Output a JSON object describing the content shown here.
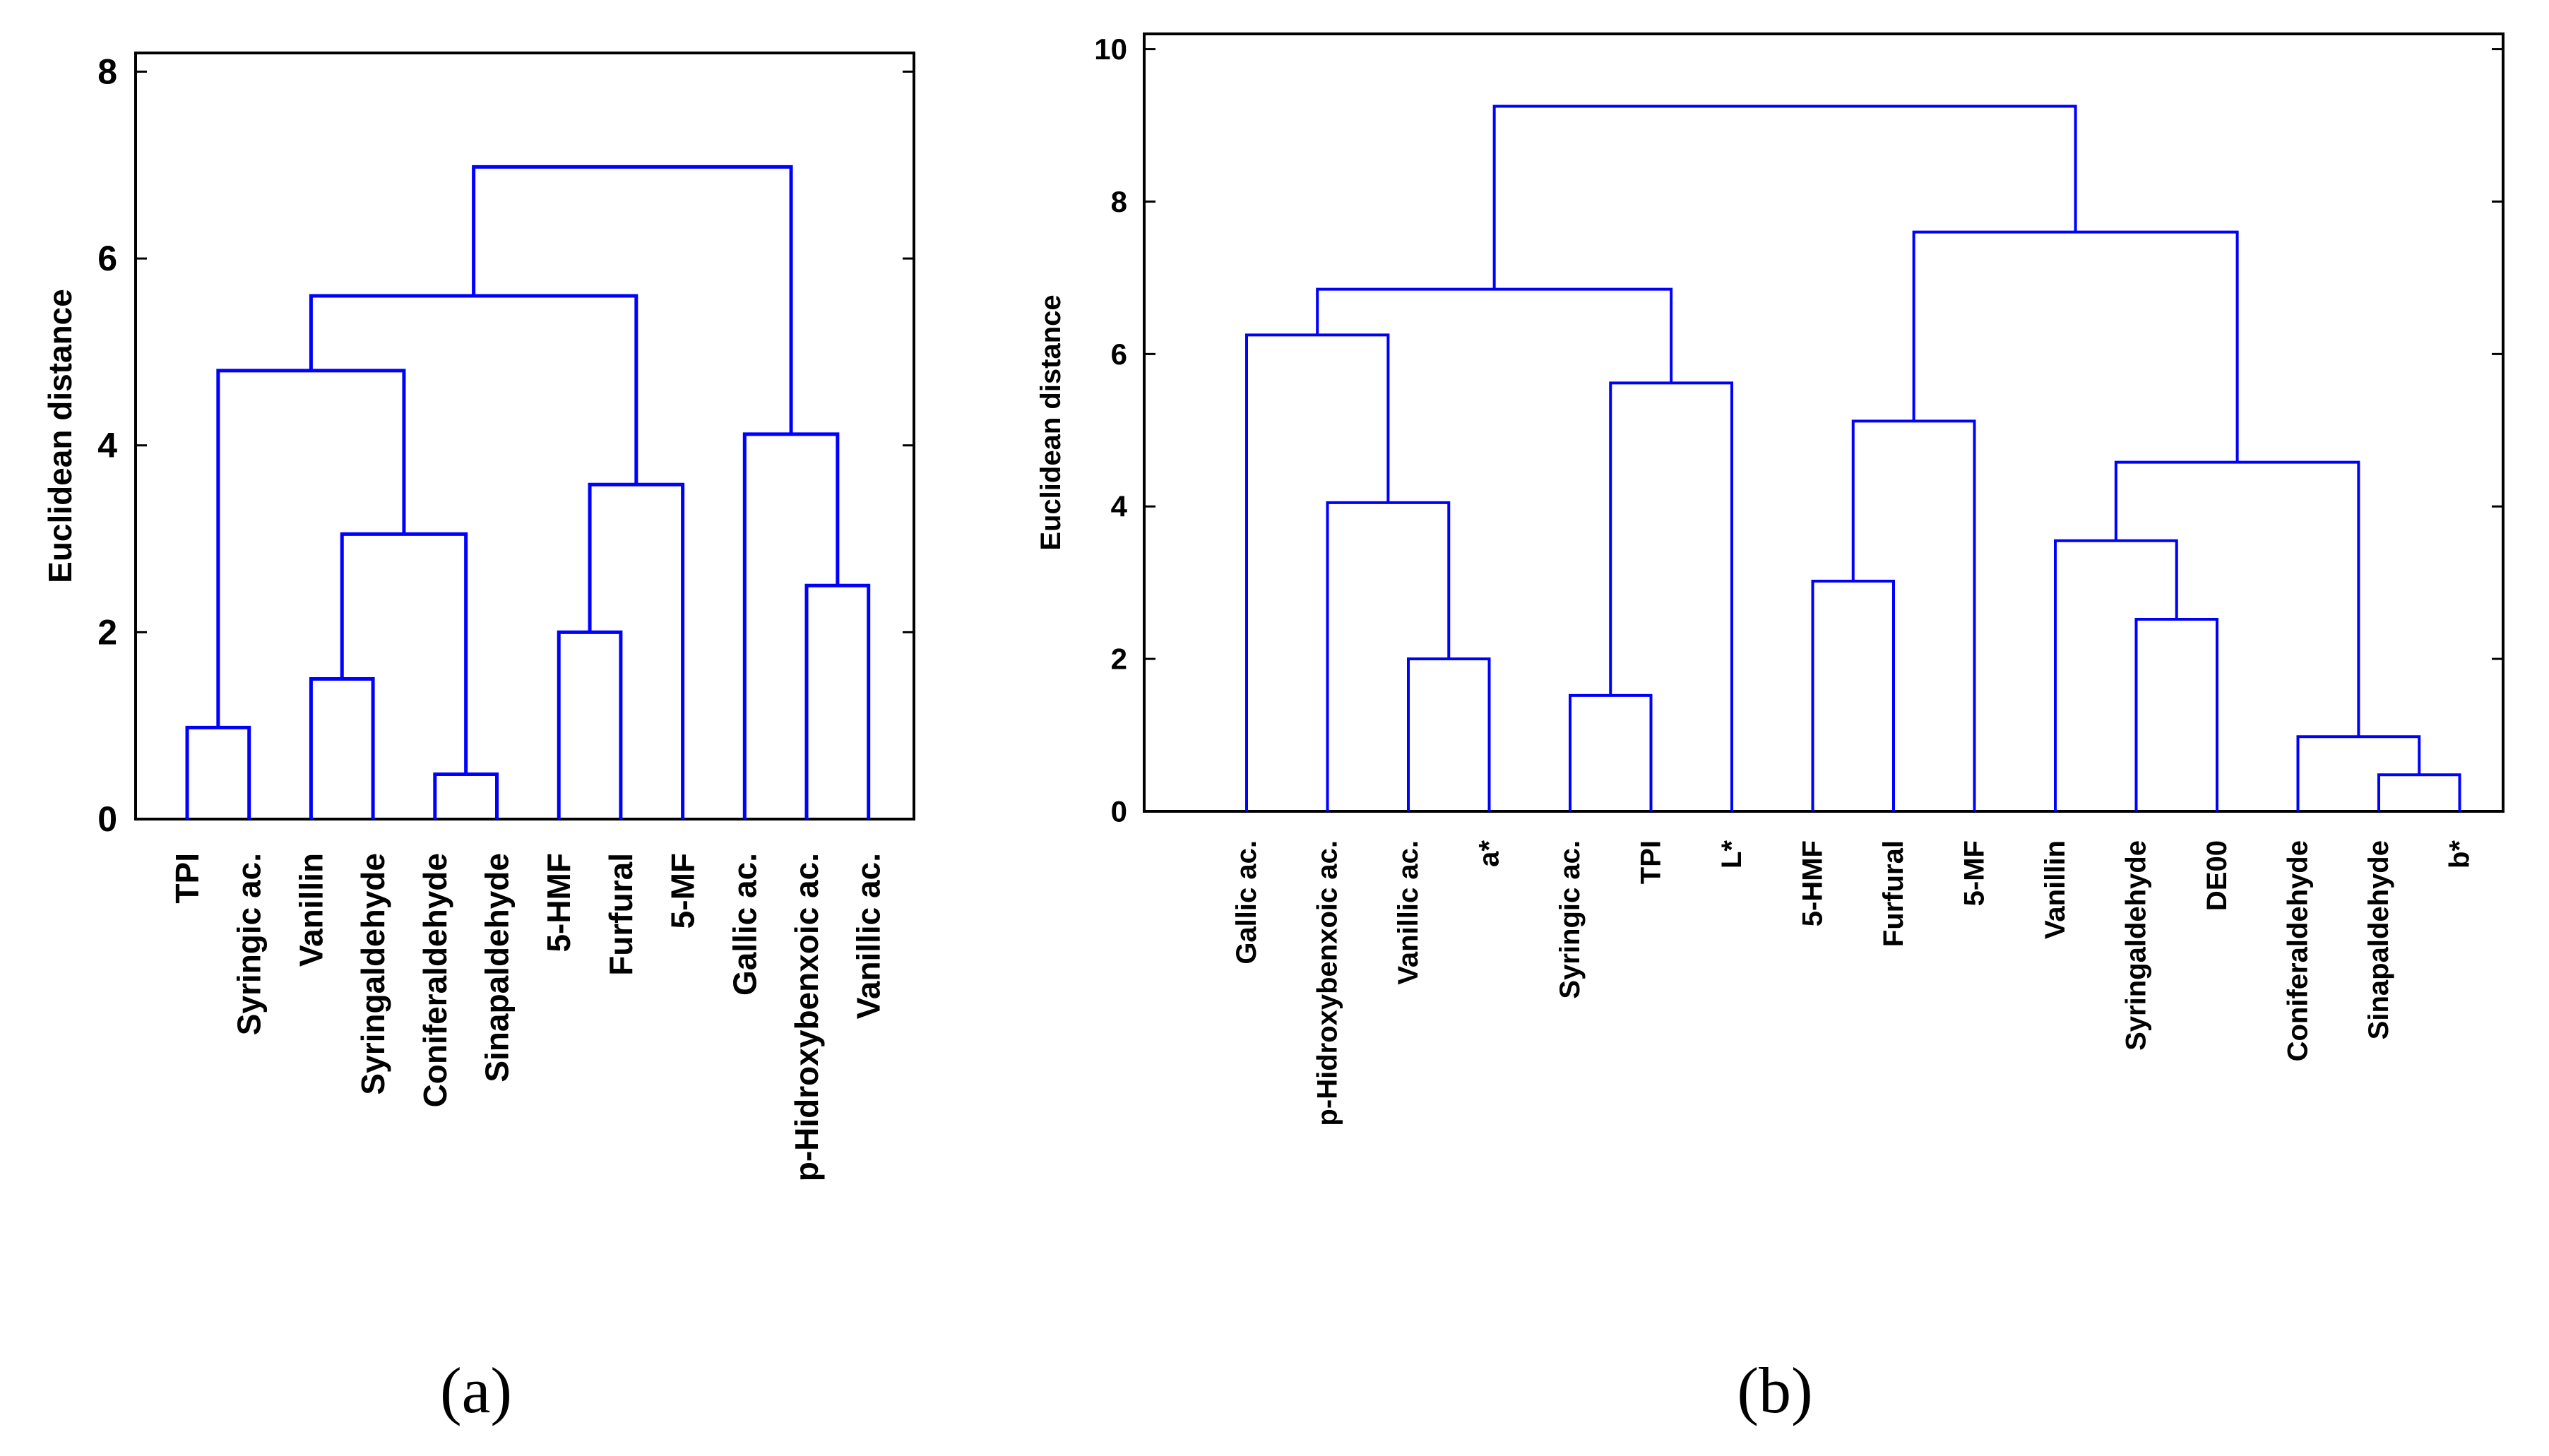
{
  "chart_data": [
    {
      "type": "dendrogram",
      "panel_label": "(a)",
      "title": "",
      "xlabel": "",
      "ylabel": "Euclidean distance",
      "ylim": [
        0,
        8.2
      ],
      "yticks": [
        0,
        2,
        4,
        6,
        8
      ],
      "grid": false,
      "line_color": "#0000ff",
      "leaves": [
        "TPI",
        "Syringic ac.",
        "Vanillin",
        "Syringaldehyde",
        "Coniferaldehyde",
        "Sinapaldehyde",
        "5-HMF",
        "Furfural",
        "5-MF",
        "Gallic ac.",
        "p-Hidroxybenxoic ac.",
        "Vanillic ac."
      ],
      "merges": [
        {
          "left": "L4",
          "right": "L5",
          "height": 0.48
        },
        {
          "left": "L0",
          "right": "L1",
          "height": 0.98
        },
        {
          "left": "L2",
          "right": "L3",
          "height": 1.5
        },
        {
          "left": "L6",
          "right": "L7",
          "height": 2.0
        },
        {
          "left": "L10",
          "right": "L11",
          "height": 2.5
        },
        {
          "left": "N2",
          "right": "N0",
          "height": 3.05
        },
        {
          "left": "N3",
          "right": "L8",
          "height": 3.58
        },
        {
          "left": "L9",
          "right": "N4",
          "height": 4.12
        },
        {
          "left": "N1",
          "right": "N5",
          "height": 4.8
        },
        {
          "left": "N8",
          "right": "N6",
          "height": 5.6
        },
        {
          "left": "N9",
          "right": "N7",
          "height": 6.98
        }
      ]
    },
    {
      "type": "dendrogram",
      "panel_label": "(b)",
      "title": "",
      "xlabel": "",
      "ylabel": "Euclidean distance",
      "ylim": [
        0,
        10.2
      ],
      "yticks": [
        0,
        2,
        4,
        6,
        8,
        10
      ],
      "grid": false,
      "line_color": "#0000ff",
      "leaves": [
        "Gallic ac.",
        "p-Hidroxybenxoic ac.",
        "Vanillic ac.",
        "a*",
        "Syringic ac.",
        "TPI",
        "L*",
        "5-HMF",
        "Furfural",
        "5-MF",
        "Vanillin",
        "Syringaldehyde",
        "DE00",
        "Coniferaldehyde",
        "Sinapaldehyde",
        "b*"
      ],
      "merges": [
        {
          "left": "L14",
          "right": "L15",
          "height": 0.48
        },
        {
          "left": "L13",
          "right": "N0",
          "height": 0.98
        },
        {
          "left": "L4",
          "right": "L5",
          "height": 1.52
        },
        {
          "left": "L2",
          "right": "L3",
          "height": 2.0
        },
        {
          "left": "L11",
          "right": "L12",
          "height": 2.52
        },
        {
          "left": "L7",
          "right": "L8",
          "height": 3.02
        },
        {
          "left": "L10",
          "right": "N4",
          "height": 3.55
        },
        {
          "left": "L1",
          "right": "N3",
          "height": 4.05
        },
        {
          "left": "N6",
          "right": "N1",
          "height": 4.58
        },
        {
          "left": "N5",
          "right": "L9",
          "height": 5.12
        },
        {
          "left": "N2",
          "right": "L6",
          "height": 5.62
        },
        {
          "left": "L0",
          "right": "N7",
          "height": 6.25
        },
        {
          "left": "N11",
          "right": "N10",
          "height": 6.85
        },
        {
          "left": "N9",
          "right": "N8",
          "height": 7.6
        },
        {
          "left": "N12",
          "right": "N13",
          "height": 9.25
        }
      ]
    }
  ]
}
